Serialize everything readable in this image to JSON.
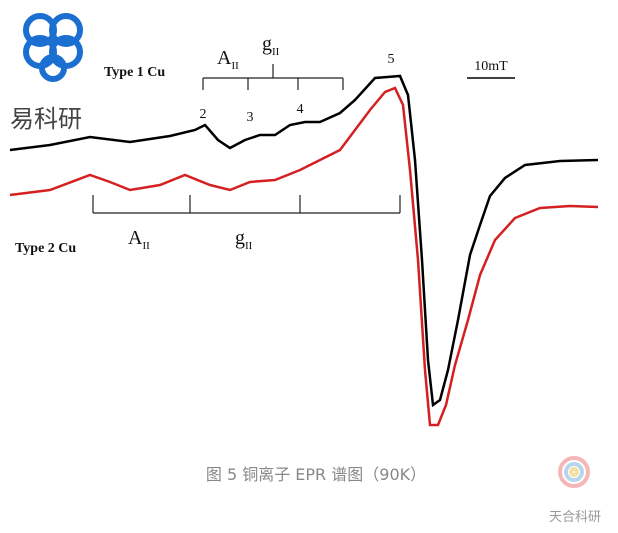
{
  "logo": {
    "text": "易科研"
  },
  "spectrum": {
    "type1": {
      "label": "Type 1 Cu",
      "a": {
        "main": "A",
        "sub": "II"
      },
      "g": {
        "main": "g",
        "sub": "II"
      },
      "peaks": [
        "2",
        "3",
        "4",
        "5"
      ]
    },
    "type2": {
      "label": "Type 2 Cu",
      "a": {
        "main": "A",
        "sub": "II"
      },
      "g": {
        "main": "g",
        "sub": "II"
      }
    },
    "scale": "10mT"
  },
  "caption": "图 5 铜离子 EPR 谱图（90K）",
  "watermark": "天合科研"
}
